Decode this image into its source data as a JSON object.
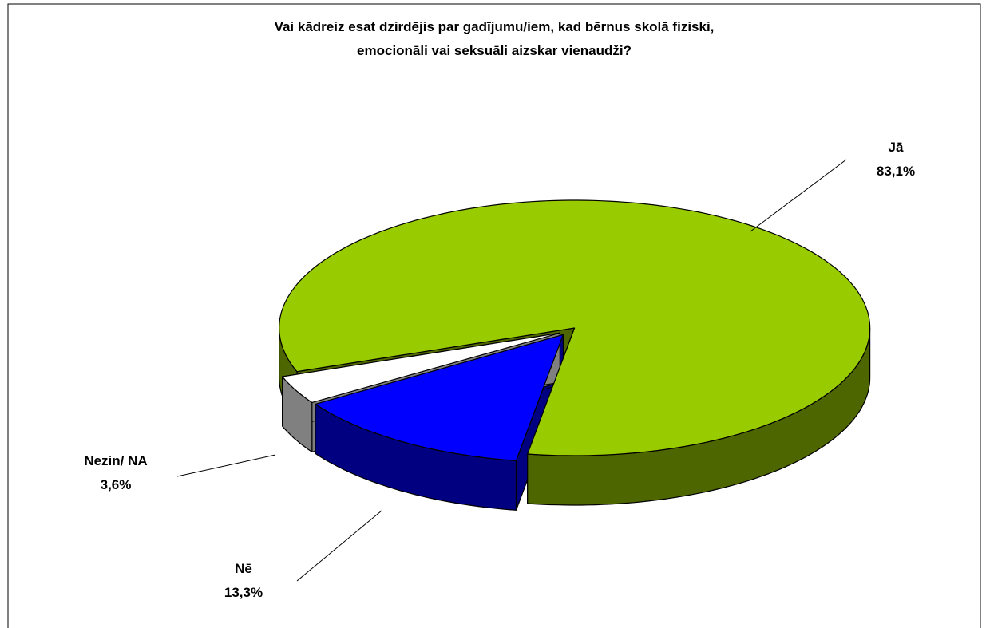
{
  "chart_data": {
    "type": "pie",
    "title": [
      "Vai kādreiz esat dzirdējis par gadījumu/iem, kad bērnus skolā fiziski,",
      "emocionāli vai seksuāli aizskar vienaudži?"
    ],
    "categories": [
      "Jā",
      "Nē",
      "Nezin/ NA"
    ],
    "values": [
      83.1,
      13.3,
      3.6
    ],
    "value_labels": [
      "83,1%",
      "13,3%",
      "3,6%"
    ],
    "colors": [
      "#99cc00",
      "#0000ff",
      "#ffffff"
    ]
  }
}
